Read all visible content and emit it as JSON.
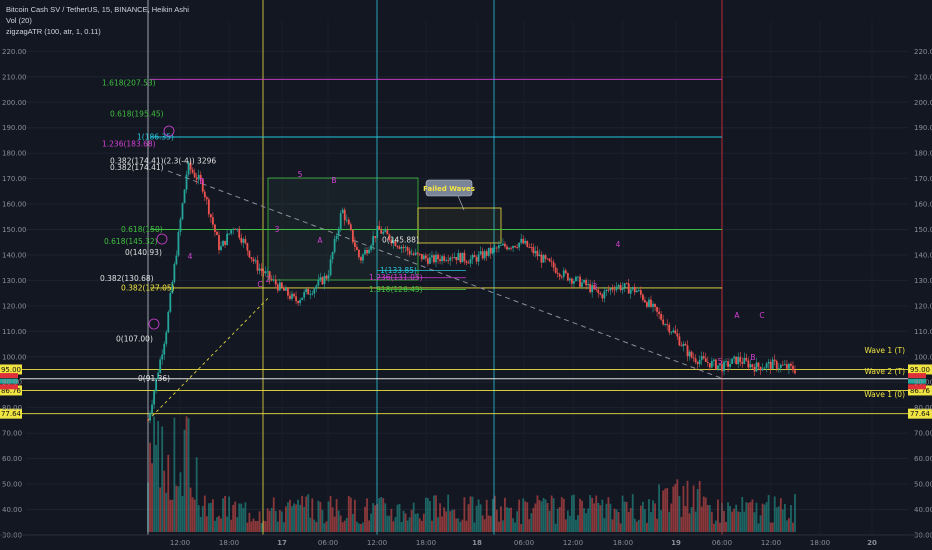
{
  "header": {
    "title": "Bitcoin Cash SV / TetherUS, 15, BINANCE, Heikin Ashi",
    "volume": "Vol (20)",
    "indicator": "zigzagATR (100, atr, 1, 0.11)"
  },
  "chart_data": {
    "type": "candlestick",
    "y_range": [
      25,
      225
    ],
    "y_ticks": [
      "30.00",
      "40.00",
      "50.00",
      "60.00",
      "70.00",
      "80.00",
      "90.00",
      "100.00",
      "110.00",
      "120.00",
      "130.00",
      "140.00",
      "150.00",
      "160.00",
      "170.00",
      "180.00",
      "190.00",
      "200.00",
      "210.00",
      "220.00"
    ],
    "x_ticks": [
      "12:00",
      "18:00",
      "17",
      "06:00",
      "12:00",
      "18:00",
      "18",
      "06:00",
      "12:00",
      "18:00",
      "19",
      "06:00",
      "12:00",
      "18:00",
      "20"
    ],
    "price_path": [
      [
        0,
        75
      ],
      [
        0.5,
        110
      ],
      [
        1.1,
        175
      ],
      [
        1.5,
        168
      ],
      [
        2.0,
        142
      ],
      [
        2.4,
        152
      ],
      [
        3.0,
        136
      ],
      [
        3.6,
        128
      ],
      [
        4.1,
        122
      ],
      [
        4.6,
        127
      ],
      [
        5.0,
        132
      ],
      [
        5.4,
        158
      ],
      [
        5.9,
        138
      ],
      [
        6.4,
        150
      ],
      [
        6.9,
        145
      ],
      [
        7.4,
        140
      ],
      [
        7.9,
        138
      ],
      [
        8.4,
        140
      ],
      [
        9.0,
        138
      ],
      [
        9.8,
        143
      ],
      [
        10.4,
        145
      ],
      [
        11.0,
        138
      ],
      [
        11.6,
        132
      ],
      [
        12.2,
        128
      ],
      [
        12.6,
        124
      ],
      [
        13.0,
        128
      ],
      [
        13.6,
        126
      ],
      [
        14.1,
        118
      ],
      [
        14.6,
        110
      ],
      [
        15.1,
        100
      ],
      [
        15.5,
        98
      ],
      [
        16.0,
        96
      ],
      [
        16.4,
        99
      ],
      [
        16.9,
        96
      ],
      [
        17.4,
        97
      ],
      [
        18.0,
        95
      ]
    ],
    "fib_levels": [
      {
        "label": "1.618(207.53)",
        "price": 207.53,
        "color": "#3fbf3f"
      },
      {
        "label": "0.618(195.45)",
        "price": 195.45,
        "color": "#3fbf3f"
      },
      {
        "label": "1.236(183.68)",
        "price": 183.68,
        "color": "#d340d3"
      },
      {
        "label": "1(186.35)",
        "price": 186.35,
        "color": "#26c6da"
      },
      {
        "label": "0.382(174.41)",
        "price": 174.41,
        "color": "#e0e0e0"
      },
      {
        "label": "0.618(150)",
        "price": 150.0,
        "color": "#3fbf3f"
      },
      {
        "label": "0.618(145.32)",
        "price": 145.32,
        "color": "#3fbf3f"
      },
      {
        "label": "0(140.93)",
        "price": 140.93,
        "color": "#e0e0e0"
      },
      {
        "label": "0.382(130.68)",
        "price": 130.68,
        "color": "#e0e0e0"
      },
      {
        "label": "0.382(127.05)",
        "price": 127.05,
        "color": "#f0e442"
      },
      {
        "label": "0(107.00)",
        "price": 107.0,
        "color": "#e0e0e0"
      },
      {
        "label": "0(91.36)",
        "price": 91.36,
        "color": "#e0e0e0"
      },
      {
        "label": "0(145.88)",
        "price": 145.88,
        "color": "#e0e0e0"
      },
      {
        "label": "1(133.85)",
        "price": 133.85,
        "color": "#26c6da"
      },
      {
        "label": "1.236(131.05)",
        "price": 131.05,
        "color": "#d340d3"
      },
      {
        "label": "1.618(126.45)",
        "price": 126.45,
        "color": "#3fbf3f"
      }
    ],
    "horizontal_levels": [
      {
        "price": 209,
        "color": "#d340d3"
      },
      {
        "price": 186.35,
        "color": "#26c6da"
      },
      {
        "price": 150,
        "color": "#3fbf3f"
      },
      {
        "price": 127.05,
        "color": "#f0e442"
      },
      {
        "price": 95.0,
        "color": "#f0e442"
      },
      {
        "price": 91.36,
        "color": "#e0e0e0"
      },
      {
        "price": 86.76,
        "color": "#f0e442"
      },
      {
        "price": 77.64,
        "color": "#f0e442"
      }
    ],
    "price_tags_right": [
      "95.00",
      "86.76",
      "77.64"
    ],
    "price_tags_left": [
      "95.00",
      "86.76",
      "77.64"
    ],
    "annotations": {
      "failed_waves": "Failed Waves",
      "wave1_t": "Wave 1 (T)",
      "wave2_t": "Wave 2 (T)",
      "wave1_0": "Wave 1 (0)",
      "fib_extra": "0.382(174.41)(2.3(-4)) 3296"
    },
    "wave_labels": [
      {
        "t": "B",
        "x": 202,
        "y": 184
      },
      {
        "t": "4",
        "x": 190,
        "y": 259
      },
      {
        "t": "C",
        "x": 260,
        "y": 287
      },
      {
        "t": "2",
        "x": 268,
        "y": 282
      },
      {
        "t": "3",
        "x": 277,
        "y": 232
      },
      {
        "t": "5",
        "x": 300,
        "y": 177
      },
      {
        "t": "B",
        "x": 334,
        "y": 183
      },
      {
        "t": "A",
        "x": 320,
        "y": 243
      },
      {
        "t": "3",
        "x": 595,
        "y": 289
      },
      {
        "t": "4",
        "x": 618,
        "y": 247
      },
      {
        "t": "A",
        "x": 737,
        "y": 318
      },
      {
        "t": "C",
        "x": 762,
        "y": 318
      },
      {
        "t": "B",
        "x": 753,
        "y": 360
      },
      {
        "t": "5",
        "x": 720,
        "y": 364
      }
    ]
  }
}
